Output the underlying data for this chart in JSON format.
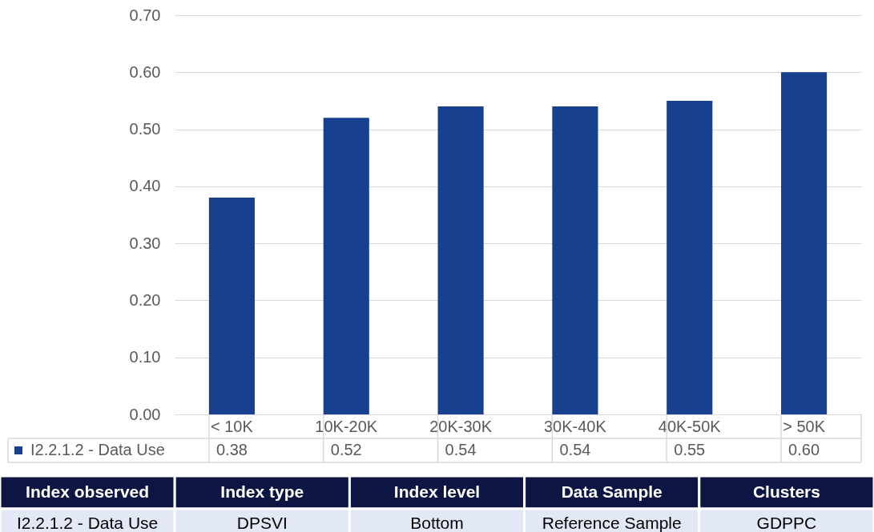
{
  "chart_data": [
    {
      "type": "bar",
      "categories": [
        "< 10K",
        "10K-20K",
        "20K-30K",
        "30K-40K",
        "40K-50K",
        "> 50K"
      ],
      "series": [
        {
          "name": "I2.2.1.2 - Data Use",
          "color": "#17408f",
          "values": [
            0.38,
            0.52,
            0.54,
            0.54,
            0.55,
            0.6
          ],
          "value_labels": [
            "0.38",
            "0.52",
            "0.54",
            "0.54",
            "0.55",
            "0.60"
          ]
        }
      ],
      "ylim": [
        0,
        0.7
      ],
      "yticks": [
        {
          "value": 0,
          "label": "0.00"
        },
        {
          "value": 0.1,
          "label": "0.10"
        },
        {
          "value": 0.2,
          "label": "0.20"
        },
        {
          "value": 0.3,
          "label": "0.30"
        },
        {
          "value": 0.4,
          "label": "0.40"
        },
        {
          "value": 0.5,
          "label": "0.50"
        },
        {
          "value": 0.6,
          "label": "0.60"
        },
        {
          "value": 0.7,
          "label": "0.70"
        }
      ],
      "grid": "y",
      "legend": "bottom left"
    },
    {
      "type": "other",
      "categories": [
        "Index observed",
        "Index type",
        "Index level",
        "Data Sample",
        "Clusters"
      ],
      "annotations": [
        "I2.2.1.2 - Data Use",
        "DPSVI",
        "Bottom",
        "Reference Sample",
        "GDPPC"
      ]
    }
  ]
}
